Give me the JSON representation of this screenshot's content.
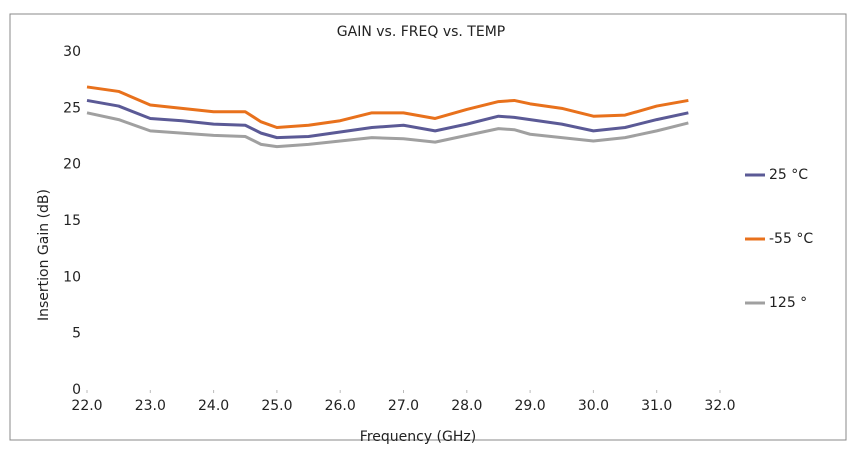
{
  "chart_data": {
    "type": "line",
    "title": "GAIN vs. FREQ vs. TEMP",
    "x_label": "Frequency (GHz)",
    "y_label": "Insertion Gain (dB)",
    "x": [
      22.0,
      22.5,
      23.0,
      23.5,
      24.0,
      24.5,
      24.75,
      25.0,
      25.5,
      26.0,
      26.5,
      27.0,
      27.5,
      28.0,
      28.5,
      28.75,
      29.0,
      29.5,
      30.0,
      30.5,
      31.0,
      31.5
    ],
    "series": [
      {
        "name": "25 °C",
        "color": "#5b5a96",
        "values": [
          25.7,
          25.2,
          24.1,
          23.9,
          23.6,
          23.5,
          22.8,
          22.4,
          22.5,
          22.9,
          23.3,
          23.5,
          23.0,
          23.6,
          24.3,
          24.2,
          24.0,
          23.6,
          23.0,
          23.3,
          24.0,
          24.6
        ]
      },
      {
        "name": "-55 °C",
        "color": "#e8711c",
        "values": [
          26.9,
          26.5,
          25.3,
          25.0,
          24.7,
          24.7,
          23.8,
          23.3,
          23.5,
          23.9,
          24.6,
          24.6,
          24.1,
          24.9,
          25.6,
          25.7,
          25.4,
          25.0,
          24.3,
          24.4,
          25.2,
          25.7
        ]
      },
      {
        "name": "125 °",
        "color": "#a0a0a0",
        "values": [
          24.6,
          24.0,
          23.0,
          22.8,
          22.6,
          22.5,
          21.8,
          21.6,
          21.8,
          22.1,
          22.4,
          22.3,
          22.0,
          22.6,
          23.2,
          23.1,
          22.7,
          22.4,
          22.1,
          22.4,
          23.0,
          23.7
        ]
      }
    ],
    "xlim": [
      22,
      32
    ],
    "ylim": [
      0,
      30
    ],
    "xticks": [
      {
        "value": 22,
        "label": "22.0"
      },
      {
        "value": 23,
        "label": "23.0"
      },
      {
        "value": 24,
        "label": "24.0"
      },
      {
        "value": 25,
        "label": "25.0"
      },
      {
        "value": 26,
        "label": "26.0"
      },
      {
        "value": 27,
        "label": "27.0"
      },
      {
        "value": 28,
        "label": "28.0"
      },
      {
        "value": 29,
        "label": "29.0"
      },
      {
        "value": 30,
        "label": "30.0"
      },
      {
        "value": 31,
        "label": "31.0"
      },
      {
        "value": 32,
        "label": "32.0"
      }
    ],
    "yticks": [
      0,
      5,
      10,
      15,
      20,
      25,
      30
    ],
    "legend": "right",
    "grid": false
  }
}
